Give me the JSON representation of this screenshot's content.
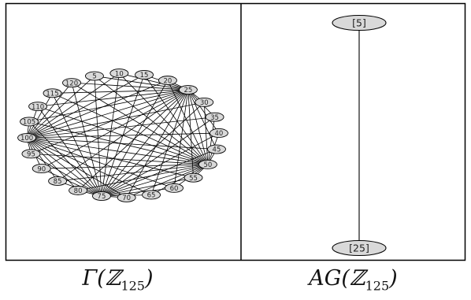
{
  "zero_divisor_graph": {
    "caption_prefix": "Γ(ℤ",
    "caption_subscript": "125",
    "caption_suffix": ")",
    "vertices": [
      "5",
      "10",
      "15",
      "20",
      "25",
      "30",
      "35",
      "40",
      "45",
      "50",
      "55",
      "60",
      "65",
      "70",
      "75",
      "80",
      "85",
      "90",
      "95",
      "100",
      "105",
      "110",
      "115",
      "120"
    ]
  },
  "annihilator_graph": {
    "caption_prefix": "AG(ℤ",
    "caption_subscript": "125",
    "caption_suffix": ")",
    "vertices": [
      "[5]",
      "[25]"
    ],
    "edges": [
      [
        "[5]",
        "[25]"
      ]
    ]
  }
}
